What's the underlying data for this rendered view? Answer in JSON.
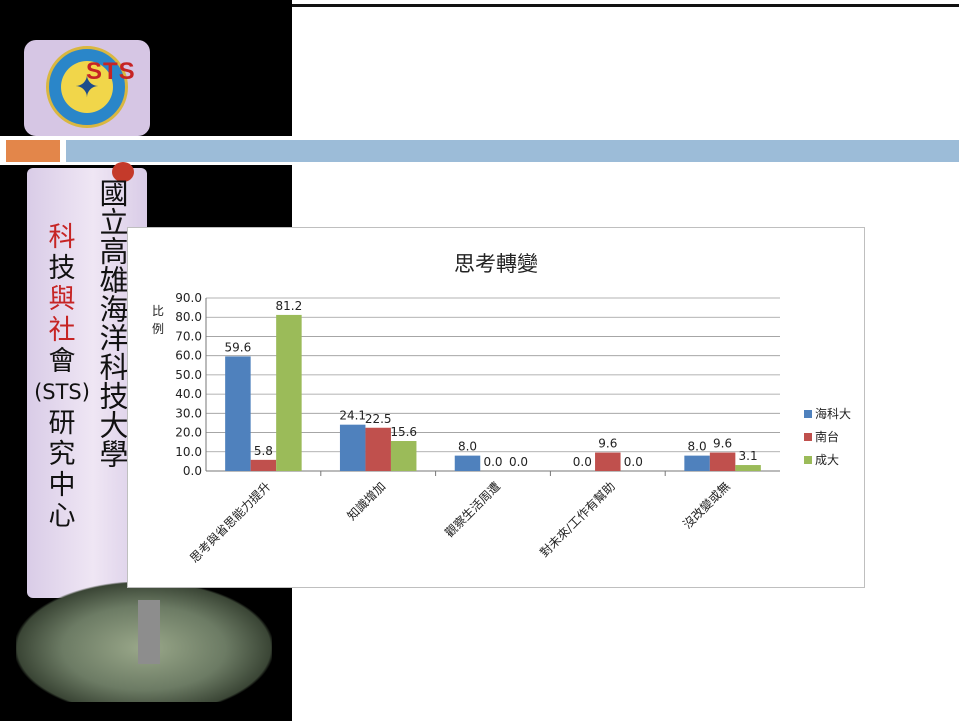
{
  "header": {
    "accent_orange": "#e3864a",
    "accent_blue": "#9cbcd8"
  },
  "branding": {
    "logo_text": "STS",
    "university_vertical": "國立高雄海洋科技大學",
    "center_lines": [
      "科",
      "技",
      "與",
      "社",
      "會",
      "(STS)",
      "研",
      "究",
      "中",
      "心"
    ],
    "red_chars": [
      "科",
      "與",
      "社"
    ]
  },
  "chart_data": {
    "type": "bar",
    "title": "思考轉變",
    "ylabel": "比例",
    "ylim": [
      0,
      90
    ],
    "yticks": [
      "90.0",
      "80.0",
      "70.0",
      "60.0",
      "50.0",
      "40.0",
      "30.0",
      "20.0",
      "10.0",
      "0.0"
    ],
    "grid": true,
    "legend_position": "right",
    "categories": [
      "思考與省思能力提升",
      "知識增加",
      "觀察生活周遭",
      "對未來/工作有幫助",
      "沒改變或無"
    ],
    "series": [
      {
        "name": "海科大",
        "color": "#4f81bd",
        "values": [
          59.6,
          24.1,
          8.0,
          0.0,
          8.0
        ]
      },
      {
        "name": "南台",
        "color": "#c0504d",
        "values": [
          5.8,
          22.5,
          0.0,
          9.6,
          9.6
        ]
      },
      {
        "name": "成大",
        "color": "#9bbb59",
        "values": [
          81.2,
          15.6,
          0.0,
          0.0,
          3.1
        ]
      }
    ]
  }
}
